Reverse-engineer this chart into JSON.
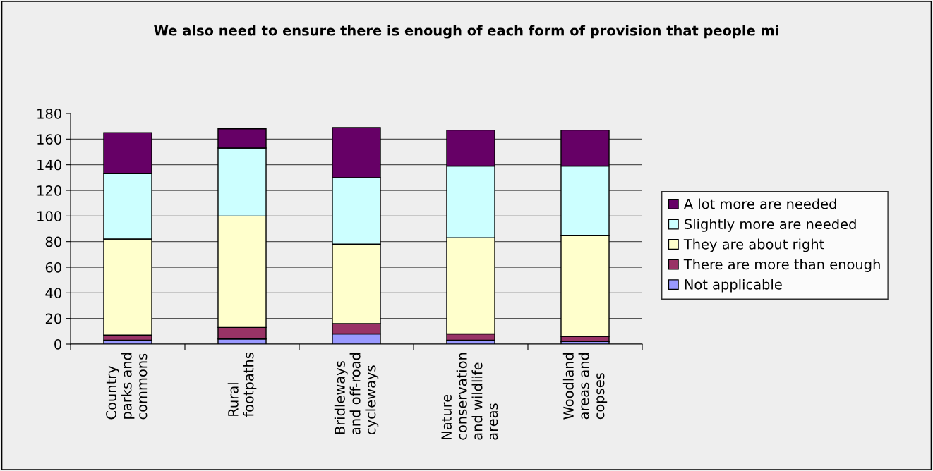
{
  "chart_data": {
    "type": "bar",
    "title": "We also need to ensure there is enough of each form of provision that people mi",
    "categories": [
      "Country parks and commons",
      "Rural footpaths",
      "Bridleways and off-road cycleways",
      "Nature conservation and wildlife areas",
      "Woodland areas and copses"
    ],
    "stacked": true,
    "ylim": [
      0,
      180
    ],
    "yticks": [
      0,
      20,
      40,
      60,
      80,
      100,
      120,
      140,
      160,
      180
    ],
    "grid": "y",
    "legend": "right",
    "series": [
      {
        "name": "Not applicable",
        "color": "#9999ff",
        "values": [
          3,
          4,
          8,
          3,
          2
        ]
      },
      {
        "name": "There are more than enough",
        "color": "#993366",
        "values": [
          4,
          9,
          8,
          5,
          4
        ]
      },
      {
        "name": "They are about right",
        "color": "#ffffcc",
        "values": [
          75,
          87,
          62,
          75,
          79
        ]
      },
      {
        "name": "Slightly more are needed",
        "color": "#ccffff",
        "values": [
          51,
          53,
          52,
          56,
          54
        ]
      },
      {
        "name": "A lot more are needed",
        "color": "#660066",
        "values": [
          32,
          15,
          39,
          28,
          28
        ]
      }
    ]
  }
}
